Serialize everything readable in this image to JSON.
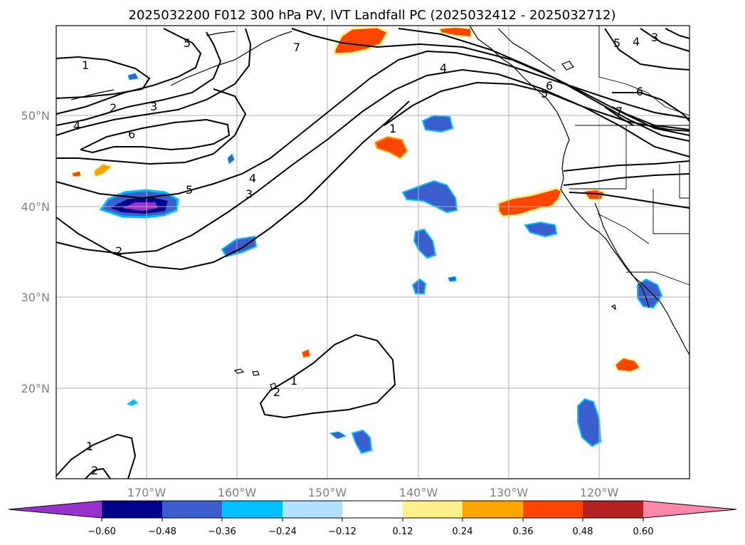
{
  "title": "2025032200 F012 300 hPa PV, IVT Landfall PC (2025032412 - 2025032712)",
  "lon_labels": [
    "170°W",
    "160°W",
    "150°W",
    "140°W",
    "130°W",
    "120°W"
  ],
  "lat_labels": [
    "50°N",
    "40°N",
    "30°N",
    "20°N"
  ],
  "colorbar": {
    "ticks": [
      "−0.60",
      "−0.48",
      "−0.36",
      "−0.24",
      "−0.12",
      "0.12",
      "0.24",
      "0.36",
      "0.48",
      "0.60"
    ],
    "colors": [
      "#9932cc",
      "#00008b",
      "#3a5fcd",
      "#00bfff",
      "#b0e2ff",
      "#ffffff",
      "#fff08c",
      "#ffa500",
      "#ff4500",
      "#b22222",
      "#ff88aa"
    ]
  },
  "contour_labels": [
    "1",
    "2",
    "3",
    "4",
    "5",
    "6",
    "7",
    "5",
    "4",
    "3",
    "6",
    "7",
    "4",
    "5",
    "6",
    "1",
    "4",
    "3",
    "5",
    "2",
    "2",
    "1",
    "1",
    "2"
  ],
  "colors": {
    "orange": "#ff4500",
    "light_orange": "#ffa500",
    "yellow": "#fff08c",
    "blue": "#3a5fcd",
    "cyan": "#00bfff",
    "light_blue": "#b0e2ff",
    "navy": "#00008b",
    "purple": "#9932cc",
    "grid": "#b0b0b0"
  }
}
